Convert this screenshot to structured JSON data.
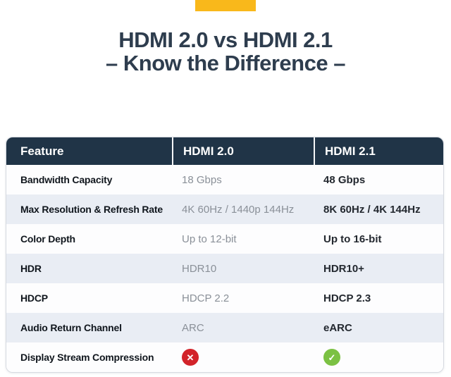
{
  "header": {
    "title_line1": "HDMI 2.0 vs HDMI 2.1",
    "title_line2": "– Know the Difference –"
  },
  "table": {
    "columns": [
      "Feature",
      "HDMI 2.0",
      "HDMI 2.1"
    ],
    "rows": [
      {
        "feature": "Bandwidth Capacity",
        "hdmi20": "18 Gbps",
        "hdmi21": "48 Gbps"
      },
      {
        "feature": "Max Resolution & Refresh Rate",
        "hdmi20": "4K 60Hz / 1440p 144Hz",
        "hdmi21": "8K 60Hz / 4K 144Hz"
      },
      {
        "feature": "Color Depth",
        "hdmi20": "Up to 12-bit",
        "hdmi21": "Up to 16-bit"
      },
      {
        "feature": "HDR",
        "hdmi20": "HDR10",
        "hdmi21": "HDR10+"
      },
      {
        "feature": "HDCP",
        "hdmi20": "HDCP 2.2",
        "hdmi21": "HDCP 2.3"
      },
      {
        "feature": "Audio Return Channel",
        "hdmi20": "ARC",
        "hdmi21": "eARC"
      },
      {
        "feature": "Display Stream Compression",
        "hdmi20_icon": "cross-icon",
        "hdmi21_icon": "check-icon"
      }
    ]
  },
  "icons": {
    "cross_glyph": "✕",
    "check_glyph": "✓"
  },
  "colors": {
    "accent_yellow": "#F9B81B",
    "title_navy": "#2E3D4E",
    "header_bg": "#203447",
    "alt_row_bg": "#E9EDF4",
    "value_gray": "#8A9098",
    "value_dark": "#23282F",
    "cross_red": "#D2232A",
    "check_green": "#7BC143"
  },
  "chart_data": {
    "type": "table",
    "title": "HDMI 2.0 vs HDMI 2.1 – Know the Difference –",
    "columns": [
      "Feature",
      "HDMI 2.0",
      "HDMI 2.1"
    ],
    "rows": [
      [
        "Bandwidth Capacity",
        "18 Gbps",
        "48 Gbps"
      ],
      [
        "Max Resolution & Refresh Rate",
        "4K 60Hz / 1440p 144Hz",
        "8K 60Hz / 4K 144Hz"
      ],
      [
        "Color Depth",
        "Up to 12-bit",
        "Up to 16-bit"
      ],
      [
        "HDR",
        "HDR10",
        "HDR10+"
      ],
      [
        "HDCP",
        "HDCP 2.2",
        "HDCP 2.3"
      ],
      [
        "Audio Return Channel",
        "ARC",
        "eARC"
      ],
      [
        "Display Stream Compression",
        "no",
        "yes"
      ]
    ]
  }
}
